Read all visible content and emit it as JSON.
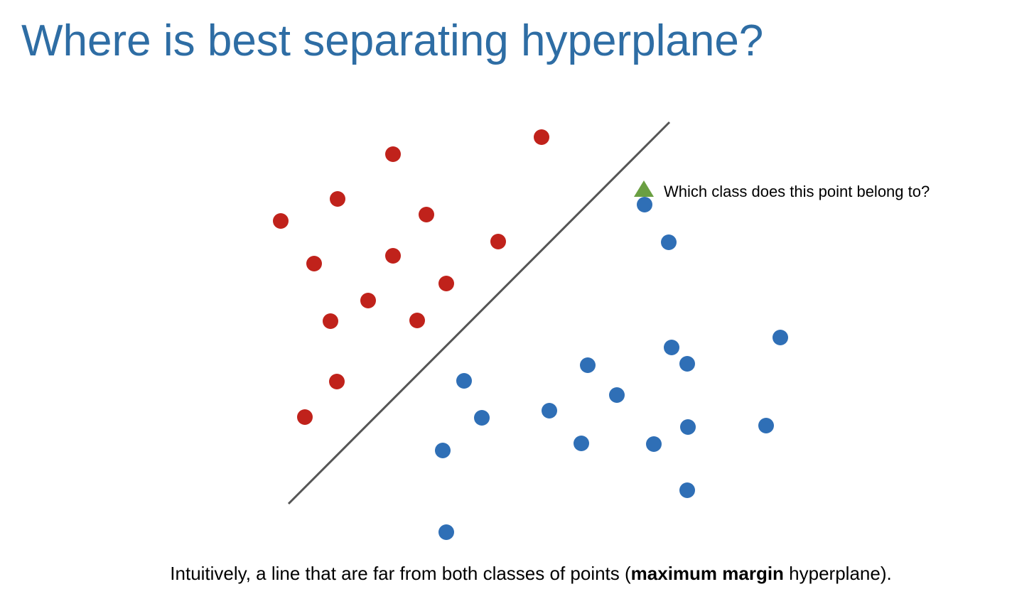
{
  "title": "Where is best separating hyperplane?",
  "annotation": "Which class does this point belong to?",
  "caption": {
    "before": "Intuitively, a line that are far from both classes of points (",
    "bold": "maximum margin",
    "after": " hyperplane)."
  },
  "colors": {
    "title": "#2e6da4",
    "red_class": "#c0221b",
    "blue_class": "#2f6fb6",
    "query_point": "#6a9f42",
    "separator_line": "#555555"
  },
  "icons": {
    "query_point": "triangle-marker"
  }
}
